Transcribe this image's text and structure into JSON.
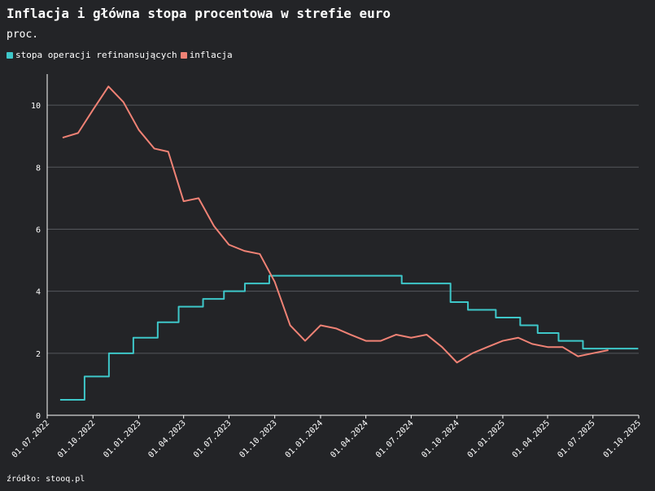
{
  "title": "Inflacja i główna stopa procentowa w strefie euro",
  "subtitle": "proc.",
  "source": "źródło: stooq.pl",
  "colors": {
    "background": "#232427",
    "grid": "#55575c",
    "axis": "#ffffff",
    "rate": "#3ec7c9",
    "inflation": "#f08275"
  },
  "chart_data": {
    "type": "line",
    "title": "Inflacja i główna stopa procentowa w strefie euro",
    "ylabel": "proc.",
    "ylim": [
      0,
      11
    ],
    "yticks": [
      0,
      2,
      4,
      6,
      8,
      10
    ],
    "xlim": [
      "2022-07-01",
      "2025-10-01"
    ],
    "xticks": [
      {
        "date": "2022-07-01",
        "label": "01.07.2022"
      },
      {
        "date": "2022-10-01",
        "label": "01.10.2022"
      },
      {
        "date": "2023-01-01",
        "label": "01.01.2023"
      },
      {
        "date": "2023-04-01",
        "label": "01.04.2023"
      },
      {
        "date": "2023-07-01",
        "label": "01.07.2023"
      },
      {
        "date": "2023-10-01",
        "label": "01.10.2023"
      },
      {
        "date": "2024-01-01",
        "label": "01.01.2024"
      },
      {
        "date": "2024-04-01",
        "label": "01.04.2024"
      },
      {
        "date": "2024-07-01",
        "label": "01.07.2024"
      },
      {
        "date": "2024-10-01",
        "label": "01.10.2024"
      },
      {
        "date": "2025-01-01",
        "label": "01.01.2025"
      },
      {
        "date": "2025-04-01",
        "label": "01.04.2025"
      },
      {
        "date": "2025-07-01",
        "label": "01.07.2025"
      },
      {
        "date": "2025-10-01",
        "label": "01.10.2025"
      }
    ],
    "grid": "horizontal",
    "legend": "top-left",
    "series": [
      {
        "name": "stopa operacji refinansujących",
        "color": "#3ec7c9",
        "step": true,
        "points": [
          [
            "2022-07-27",
            0.5
          ],
          [
            "2022-07-28",
            0.5
          ],
          [
            "2022-09-14",
            1.25
          ],
          [
            "2022-11-02",
            2.0
          ],
          [
            "2022-12-21",
            2.5
          ],
          [
            "2023-02-08",
            3.0
          ],
          [
            "2023-03-22",
            3.5
          ],
          [
            "2023-05-10",
            3.75
          ],
          [
            "2023-06-21",
            4.0
          ],
          [
            "2023-08-02",
            4.25
          ],
          [
            "2023-09-20",
            4.5
          ],
          [
            "2024-06-12",
            4.25
          ],
          [
            "2024-09-18",
            3.65
          ],
          [
            "2024-10-23",
            3.4
          ],
          [
            "2024-12-18",
            3.15
          ],
          [
            "2025-02-05",
            2.9
          ],
          [
            "2025-03-12",
            2.65
          ],
          [
            "2025-04-23",
            2.4
          ],
          [
            "2025-06-11",
            2.15
          ],
          [
            "2025-09-30",
            2.15
          ]
        ]
      },
      {
        "name": "inflacja",
        "color": "#f08275",
        "step": false,
        "points": [
          [
            "2022-08-01",
            8.95
          ],
          [
            "2022-09-01",
            9.1
          ],
          [
            "2022-10-01",
            9.85
          ],
          [
            "2022-11-01",
            10.6
          ],
          [
            "2022-12-01",
            10.1
          ],
          [
            "2023-01-01",
            9.2
          ],
          [
            "2023-02-01",
            8.6
          ],
          [
            "2023-03-01",
            8.5
          ],
          [
            "2023-04-01",
            6.9
          ],
          [
            "2023-05-01",
            7.0
          ],
          [
            "2023-06-01",
            6.1
          ],
          [
            "2023-07-01",
            5.5
          ],
          [
            "2023-08-01",
            5.3
          ],
          [
            "2023-09-01",
            5.2
          ],
          [
            "2023-10-01",
            4.3
          ],
          [
            "2023-11-01",
            2.9
          ],
          [
            "2023-12-01",
            2.4
          ],
          [
            "2024-01-01",
            2.9
          ],
          [
            "2024-02-01",
            2.8
          ],
          [
            "2024-03-01",
            2.6
          ],
          [
            "2024-04-01",
            2.4
          ],
          [
            "2024-05-01",
            2.4
          ],
          [
            "2024-06-01",
            2.6
          ],
          [
            "2024-07-01",
            2.5
          ],
          [
            "2024-08-01",
            2.6
          ],
          [
            "2024-09-01",
            2.2
          ],
          [
            "2024-10-01",
            1.7
          ],
          [
            "2024-11-01",
            2.0
          ],
          [
            "2024-12-01",
            2.2
          ],
          [
            "2025-01-01",
            2.4
          ],
          [
            "2025-02-01",
            2.5
          ],
          [
            "2025-03-01",
            2.3
          ],
          [
            "2025-04-01",
            2.2
          ],
          [
            "2025-05-01",
            2.2
          ],
          [
            "2025-06-01",
            1.9
          ],
          [
            "2025-07-01",
            2.0
          ],
          [
            "2025-08-01",
            2.1
          ]
        ]
      }
    ]
  }
}
